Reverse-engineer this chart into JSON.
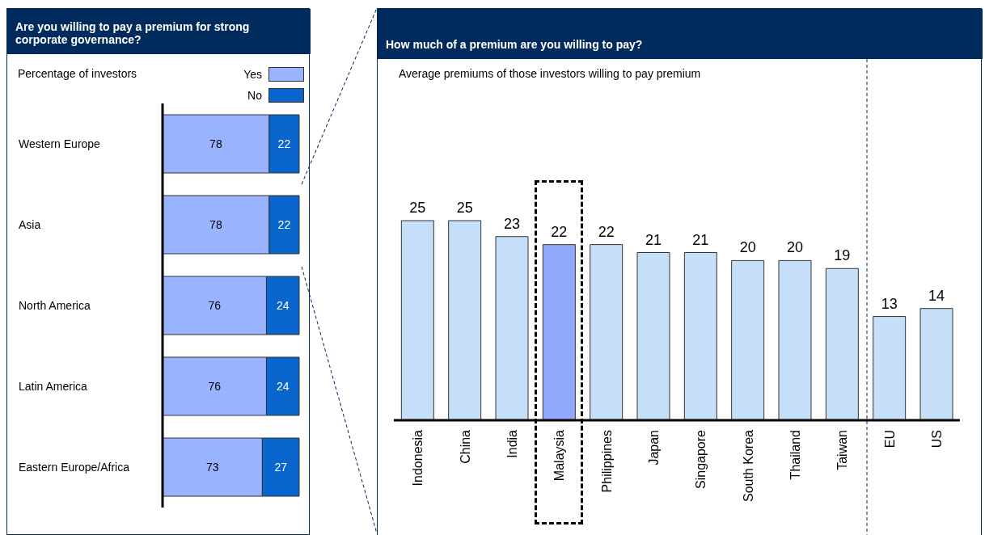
{
  "chart_data": [
    {
      "type": "bar",
      "orientation": "horizontal",
      "stacked": true,
      "title": "Are you willing to pay a premium for strong corporate governance?",
      "subtitle": "Percentage of investors",
      "categories": [
        "Western Europe",
        "Asia",
        "North America",
        "Latin America",
        "Eastern Europe/Africa"
      ],
      "series": [
        {
          "name": "Yes",
          "color": "#99b3ff",
          "values": [
            78,
            78,
            76,
            76,
            73
          ]
        },
        {
          "name": "No",
          "color": "#0a66cc",
          "values": [
            22,
            22,
            24,
            24,
            27
          ]
        }
      ],
      "data_labels": true,
      "legend": "top right",
      "grid": false
    },
    {
      "type": "bar",
      "title": "How much of a premium are you willing to pay?",
      "subtitle": "Average premiums of those investors willing to pay premium",
      "categories": [
        "Indonesia",
        "China",
        "India",
        "Malaysia",
        "Philippines",
        "Japan",
        "Singapore",
        "South Korea",
        "Thailand",
        "Taiwan",
        "EU",
        "US"
      ],
      "values": [
        25,
        25,
        23,
        22,
        22,
        21,
        21,
        20,
        20,
        19,
        13,
        14
      ],
      "colors": [
        "#c6dff8",
        "#c6dff8",
        "#c6dff8",
        "#8faaf8",
        "#c6dff8",
        "#c6dff8",
        "#c6dff8",
        "#c6dff8",
        "#c6dff8",
        "#c6dff8",
        "#c6dff8",
        "#c6dff8"
      ],
      "data_labels": true,
      "grid": false
    }
  ]
}
